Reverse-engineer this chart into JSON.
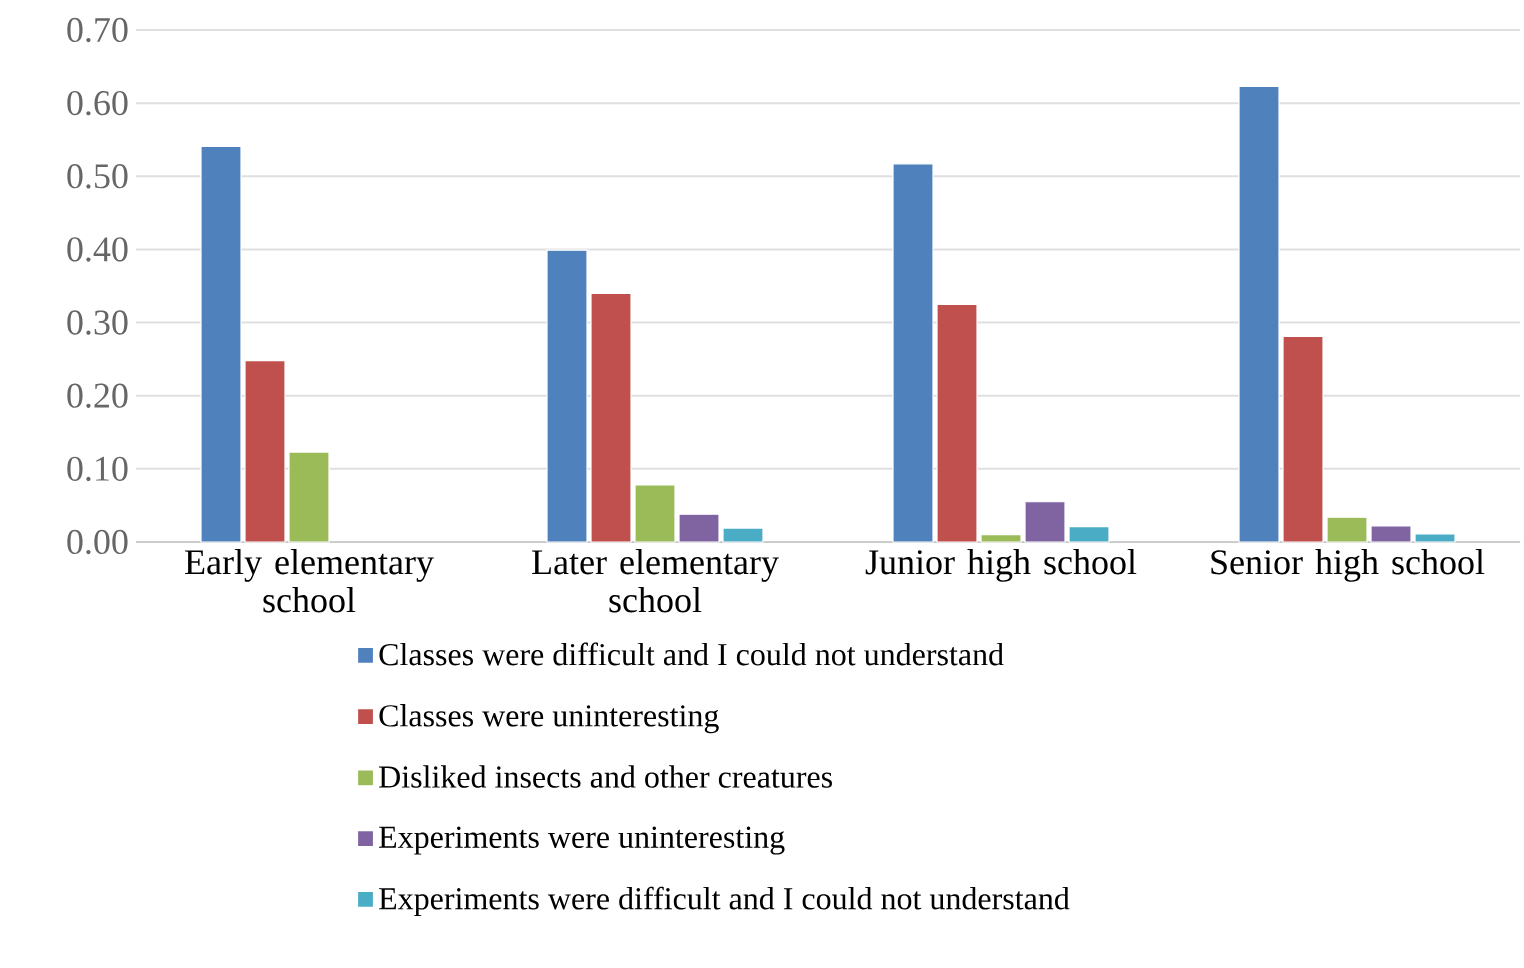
{
  "chart_data": {
    "type": "bar",
    "categories": [
      "Early elementary school",
      "Later elementary school",
      "Junior high school",
      "Senior high school"
    ],
    "series": [
      {
        "name": "Classes were difficult and I could not understand",
        "color": "#4f81bd",
        "values": [
          0.541,
          0.399,
          0.517,
          0.623
        ]
      },
      {
        "name": "Classes were uninteresting",
        "color": "#c0504d",
        "values": [
          0.248,
          0.34,
          0.325,
          0.281
        ]
      },
      {
        "name": "Disliked insects and other creatures",
        "color": "#9bbb59",
        "values": [
          0.123,
          0.078,
          0.01,
          0.034
        ]
      },
      {
        "name": "Experiments were uninteresting",
        "color": "#8064a2",
        "values": [
          null,
          0.038,
          0.055,
          0.022
        ]
      },
      {
        "name": "Experiments were difficult and I could not understand",
        "color": "#4bacc6",
        "values": [
          null,
          0.019,
          0.021,
          0.011
        ]
      }
    ],
    "ylim": [
      0,
      0.7
    ],
    "yticks": [
      {
        "value": 0,
        "label": "0.00"
      },
      {
        "value": 0.1,
        "label": "0.10"
      },
      {
        "value": 0.2,
        "label": "0.20"
      },
      {
        "value": 0.3,
        "label": "0.30"
      },
      {
        "value": 0.4,
        "label": "0.40"
      },
      {
        "value": 0.5,
        "label": "0.50"
      },
      {
        "value": 0.6,
        "label": "0.60"
      },
      {
        "value": 0.7,
        "label": "0.70"
      }
    ],
    "grid": "y",
    "legend": "bottom"
  }
}
